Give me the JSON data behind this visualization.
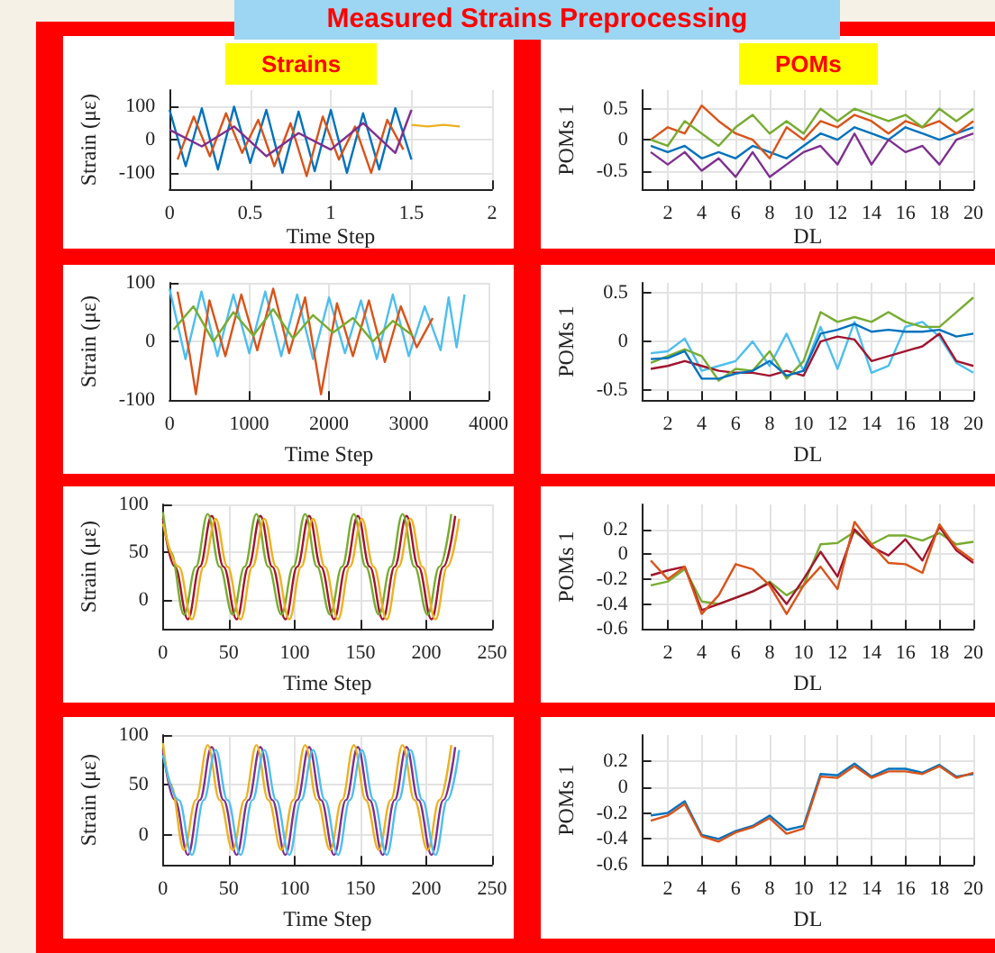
{
  "chart_data": [
    {
      "type": "line",
      "title": "Measured Strains Preprocessing",
      "subtitle": "Strains",
      "xlabel": "Time Step",
      "ylabel": "Strain (με)",
      "xlim": [
        0,
        2
      ],
      "xticks": [
        0,
        0.5,
        1,
        1.5,
        2
      ],
      "ylim": [
        -150,
        150
      ],
      "yticks": [
        -100,
        0,
        100
      ],
      "grid": true,
      "marker": "none",
      "series": [
        {
          "color": "#0072bd",
          "x": [
            0,
            0.1,
            0.2,
            0.3,
            0.4,
            0.5,
            0.6,
            0.7,
            0.8,
            0.9,
            1,
            1.1,
            1.2,
            1.3,
            1.4,
            1.5
          ],
          "values": [
            90,
            -80,
            95,
            -90,
            100,
            -70,
            90,
            -100,
            85,
            -95,
            90,
            -100,
            80,
            -90,
            95,
            -60
          ]
        },
        {
          "color": "#d95319",
          "x": [
            0.05,
            0.15,
            0.25,
            0.35,
            0.45,
            0.55,
            0.65,
            0.75,
            0.85,
            0.95,
            1.05,
            1.15,
            1.25,
            1.35,
            1.45
          ],
          "values": [
            -60,
            70,
            -50,
            80,
            -40,
            60,
            -80,
            50,
            -110,
            70,
            -60,
            40,
            -100,
            60,
            -30
          ]
        },
        {
          "color": "#7e2f8e",
          "x": [
            0,
            0.2,
            0.4,
            0.6,
            0.8,
            1,
            1.2,
            1.4,
            1.5
          ],
          "values": [
            30,
            -20,
            40,
            -50,
            20,
            -30,
            50,
            -40,
            90
          ]
        },
        {
          "color": "#edb120",
          "x": [
            1.5,
            1.6,
            1.7,
            1.8
          ],
          "values": [
            45,
            40,
            45,
            40
          ]
        }
      ]
    },
    {
      "type": "line",
      "subtitle": "POMs",
      "xlabel": "DL",
      "ylabel": "POMs 1",
      "xlim": [
        0.5,
        20
      ],
      "xticks": [
        2,
        4,
        6,
        8,
        10,
        12,
        14,
        16,
        18,
        20
      ],
      "ylim": [
        -0.8,
        0.8
      ],
      "yticks": [
        -0.5,
        0,
        0.5
      ],
      "grid": true,
      "marker": "none",
      "series": [
        {
          "color": "#0072bd",
          "x": [
            1,
            2,
            3,
            4,
            5,
            6,
            7,
            8,
            9,
            10,
            11,
            12,
            13,
            14,
            15,
            16,
            17,
            18,
            19,
            20
          ],
          "values": [
            -0.1,
            -0.2,
            -0.1,
            -0.3,
            -0.2,
            -0.3,
            -0.1,
            -0.2,
            -0.3,
            -0.1,
            0.1,
            0,
            0.2,
            0.1,
            0,
            0.2,
            0.1,
            0,
            0.1,
            0.2
          ]
        },
        {
          "color": "#d95319",
          "x": [
            1,
            2,
            3,
            4,
            5,
            6,
            7,
            8,
            9,
            10,
            11,
            12,
            13,
            14,
            15,
            16,
            17,
            18,
            19,
            20
          ],
          "values": [
            0,
            0.2,
            0.1,
            0.55,
            0.3,
            0.1,
            0,
            -0.3,
            0.2,
            0,
            0.3,
            0.2,
            0.4,
            0.3,
            0.1,
            0.3,
            0.2,
            0.3,
            0.1,
            0.3
          ]
        },
        {
          "color": "#7e2f8e",
          "x": [
            1,
            2,
            3,
            4,
            5,
            6,
            7,
            8,
            9,
            10,
            11,
            12,
            13,
            14,
            15,
            16,
            17,
            18,
            19,
            20
          ],
          "values": [
            -0.2,
            -0.4,
            -0.2,
            -0.5,
            -0.3,
            -0.6,
            -0.2,
            -0.6,
            -0.4,
            -0.2,
            -0.1,
            -0.4,
            0.1,
            -0.4,
            0,
            -0.2,
            -0.1,
            -0.4,
            0,
            0.1
          ]
        },
        {
          "color": "#77ac30",
          "x": [
            1,
            2,
            3,
            4,
            5,
            6,
            7,
            8,
            9,
            10,
            11,
            12,
            13,
            14,
            15,
            16,
            17,
            18,
            19,
            20
          ],
          "values": [
            0,
            -0.1,
            0.3,
            0.1,
            -0.1,
            0.2,
            0.4,
            0.1,
            0.3,
            0.1,
            0.5,
            0.3,
            0.5,
            0.4,
            0.3,
            0.4,
            0.2,
            0.5,
            0.3,
            0.5
          ]
        }
      ]
    },
    {
      "type": "line",
      "xlabel": "Time Step",
      "ylabel": "Strain (με)",
      "xlim": [
        0,
        4000
      ],
      "xticks": [
        0,
        1000,
        2000,
        3000,
        4000
      ],
      "ylim": [
        -100,
        100
      ],
      "yticks": [
        -100,
        0,
        100
      ],
      "grid": true,
      "marker": "none",
      "series": [
        {
          "color": "#4dbeee",
          "x": [
            0,
            200,
            400,
            600,
            800,
            1000,
            1200,
            1400,
            1600,
            1800,
            2000,
            2200,
            2400,
            2600,
            2800,
            3000,
            3200,
            3400,
            3500,
            3600,
            3700
          ],
          "values": [
            90,
            -30,
            85,
            -25,
            80,
            -20,
            85,
            -25,
            80,
            -30,
            75,
            -20,
            70,
            -30,
            80,
            -25,
            60,
            -15,
            75,
            -10,
            80
          ]
        },
        {
          "color": "#d95319",
          "x": [
            100,
            250,
            330,
            500,
            700,
            900,
            1100,
            1300,
            1500,
            1700,
            1900,
            2100,
            2300,
            2500,
            2700,
            2900,
            3100,
            3300
          ],
          "values": [
            85,
            -20,
            -90,
            70,
            -25,
            80,
            -15,
            90,
            -20,
            75,
            -90,
            65,
            -25,
            70,
            -35,
            60,
            -10,
            40
          ]
        },
        {
          "color": "#77ac30",
          "x": [
            50,
            300,
            550,
            800,
            1050,
            1300,
            1550,
            1800,
            2050,
            2300,
            2550,
            2800,
            3050
          ],
          "values": [
            20,
            60,
            0,
            50,
            10,
            55,
            5,
            45,
            15,
            40,
            0,
            35,
            10
          ]
        }
      ]
    },
    {
      "type": "line",
      "xlabel": "DL",
      "ylabel": "POMs 1",
      "xlim": [
        0.5,
        20
      ],
      "xticks": [
        2,
        4,
        6,
        8,
        10,
        12,
        14,
        16,
        18,
        20
      ],
      "ylim": [
        -0.6,
        0.6
      ],
      "yticks": [
        -0.5,
        0,
        0.5
      ],
      "grid": true,
      "marker": "none",
      "series": [
        {
          "color": "#4dbeee",
          "x": [
            1,
            2,
            3,
            4,
            5,
            6,
            7,
            8,
            9,
            10,
            11,
            12,
            13,
            14,
            15,
            16,
            17,
            18,
            19,
            20
          ],
          "values": [
            -0.12,
            -0.1,
            0.03,
            -0.3,
            -0.25,
            -0.2,
            0,
            -0.25,
            0.08,
            -0.3,
            0.15,
            -0.28,
            0.2,
            -0.32,
            -0.25,
            0.15,
            0.2,
            0.05,
            -0.22,
            -0.32
          ]
        },
        {
          "color": "#a2142f",
          "x": [
            1,
            2,
            3,
            4,
            5,
            6,
            7,
            8,
            9,
            10,
            11,
            12,
            13,
            14,
            15,
            16,
            17,
            18,
            19,
            20
          ],
          "values": [
            -0.28,
            -0.25,
            -0.2,
            -0.25,
            -0.3,
            -0.32,
            -0.32,
            -0.35,
            -0.3,
            -0.35,
            0,
            0.05,
            0.02,
            -0.2,
            -0.15,
            -0.1,
            -0.05,
            0.08,
            -0.2,
            -0.25
          ]
        },
        {
          "color": "#77ac30",
          "x": [
            1,
            2,
            3,
            4,
            5,
            6,
            7,
            8,
            9,
            10,
            11,
            12,
            13,
            14,
            15,
            16,
            17,
            18,
            19,
            20
          ],
          "values": [
            -0.22,
            -0.15,
            -0.08,
            -0.15,
            -0.4,
            -0.28,
            -0.3,
            -0.1,
            -0.38,
            -0.2,
            0.3,
            0.2,
            0.25,
            0.2,
            0.3,
            0.2,
            0.15,
            0.15,
            0.3,
            0.45
          ]
        },
        {
          "color": "#0072bd",
          "x": [
            1,
            2,
            3,
            4,
            5,
            6,
            7,
            8,
            9,
            10,
            11,
            12,
            13,
            14,
            15,
            16,
            17,
            18,
            19,
            20
          ],
          "values": [
            -0.18,
            -0.17,
            -0.1,
            -0.38,
            -0.38,
            -0.33,
            -0.3,
            -0.2,
            -0.35,
            -0.3,
            0.08,
            0.12,
            0.18,
            0.1,
            0.12,
            0.1,
            0.1,
            0.12,
            0.05,
            0.08
          ]
        }
      ]
    },
    {
      "type": "line",
      "xlabel": "Time Step",
      "ylabel": "Strain (με)",
      "xlim": [
        0,
        250
      ],
      "xticks": [
        0,
        50,
        100,
        150,
        200,
        250
      ],
      "ylim": [
        -30,
        100
      ],
      "yticks": [
        0,
        50,
        100
      ],
      "grid": true,
      "marker": "none",
      "series": [
        {
          "color": "#a2142f",
          "x": [
            0,
            9,
            19,
            28,
            37,
            46,
            56,
            65,
            74,
            83,
            93,
            102,
            111,
            120,
            130,
            139,
            148,
            157,
            167,
            176,
            185,
            194,
            204,
            213,
            222
          ],
          "values": [
            85,
            35,
            -20,
            35,
            88,
            35,
            -20,
            35,
            88,
            35,
            -20,
            35,
            88,
            35,
            -20,
            35,
            88,
            35,
            -20,
            35,
            88,
            35,
            -20,
            35,
            88
          ]
        },
        {
          "color": "#77ac30",
          "x": [
            0,
            6,
            16,
            25,
            34,
            43,
            53,
            62,
            71,
            80,
            90,
            99,
            108,
            117,
            127,
            136,
            145,
            154,
            164,
            173,
            182,
            191,
            201,
            210,
            219
          ],
          "values": [
            92,
            50,
            -15,
            35,
            90,
            35,
            -15,
            35,
            90,
            35,
            -15,
            35,
            90,
            35,
            -15,
            35,
            90,
            35,
            -15,
            35,
            90,
            35,
            -15,
            35,
            90
          ]
        },
        {
          "color": "#edb120",
          "x": [
            0,
            12,
            22,
            31,
            40,
            49,
            59,
            68,
            77,
            86,
            96,
            105,
            114,
            123,
            133,
            142,
            151,
            160,
            170,
            179,
            188,
            197,
            207,
            216,
            225
          ],
          "values": [
            80,
            35,
            -20,
            35,
            85,
            35,
            -20,
            35,
            85,
            35,
            -20,
            35,
            85,
            35,
            -20,
            35,
            85,
            35,
            -20,
            35,
            85,
            35,
            -20,
            35,
            85
          ]
        }
      ]
    },
    {
      "type": "line",
      "xlabel": "DL",
      "ylabel": "POMs 1",
      "xlim": [
        0.5,
        20
      ],
      "xticks": [
        2,
        4,
        6,
        8,
        10,
        12,
        14,
        16,
        18,
        20
      ],
      "ylim": [
        -0.6,
        0.4
      ],
      "yticks": [
        -0.6,
        -0.4,
        -0.2,
        0,
        0.2
      ],
      "grid": true,
      "marker": "none",
      "series": [
        {
          "color": "#77ac30",
          "x": [
            1,
            2,
            3,
            4,
            5,
            6,
            7,
            8,
            9,
            10,
            11,
            12,
            13,
            14,
            15,
            16,
            17,
            18,
            19,
            20
          ],
          "values": [
            -0.25,
            -0.22,
            -0.12,
            -0.38,
            -0.4,
            -0.35,
            -0.3,
            -0.22,
            -0.33,
            -0.25,
            0.08,
            0.09,
            0.18,
            0.08,
            0.15,
            0.15,
            0.11,
            0.17,
            0.08,
            0.1
          ]
        },
        {
          "color": "#a2142f",
          "x": [
            1,
            2,
            3,
            4,
            5,
            6,
            7,
            8,
            9,
            10,
            11,
            12,
            13,
            14,
            15,
            16,
            17,
            18,
            19,
            20
          ],
          "values": [
            -0.17,
            -0.13,
            -0.1,
            -0.45,
            -0.4,
            -0.35,
            -0.3,
            -0.23,
            -0.4,
            -0.2,
            0.02,
            -0.18,
            0.2,
            0.06,
            -0.01,
            0.12,
            -0.05,
            0.22,
            0.03,
            -0.07
          ]
        },
        {
          "color": "#d95319",
          "x": [
            1,
            2,
            3,
            4,
            5,
            6,
            7,
            8,
            9,
            10,
            11,
            12,
            13,
            14,
            15,
            16,
            17,
            18,
            19,
            20
          ],
          "values": [
            -0.05,
            -0.2,
            -0.1,
            -0.48,
            -0.33,
            -0.08,
            -0.12,
            -0.25,
            -0.48,
            -0.25,
            -0.1,
            -0.28,
            0.26,
            0.08,
            -0.07,
            -0.08,
            -0.15,
            0.24,
            0.05,
            -0.05
          ]
        }
      ]
    },
    {
      "type": "line",
      "xlabel": "Time Step",
      "ylabel": "Strain (με)",
      "xlim": [
        0,
        250
      ],
      "xticks": [
        0,
        50,
        100,
        150,
        200,
        250
      ],
      "ylim": [
        -30,
        100
      ],
      "yticks": [
        0,
        50,
        100
      ],
      "grid": true,
      "marker": "none",
      "series": [
        {
          "color": "#7e2f8e",
          "x": [
            0,
            9,
            19,
            28,
            37,
            46,
            56,
            65,
            74,
            83,
            93,
            102,
            111,
            120,
            130,
            139,
            148,
            157,
            167,
            176,
            185,
            194,
            204,
            213,
            222
          ],
          "values": [
            85,
            35,
            -20,
            35,
            88,
            35,
            -20,
            35,
            88,
            35,
            -20,
            35,
            88,
            35,
            -20,
            35,
            88,
            35,
            -20,
            35,
            88,
            35,
            -20,
            35,
            88
          ]
        },
        {
          "color": "#edb120",
          "x": [
            0,
            6,
            16,
            25,
            34,
            43,
            53,
            62,
            71,
            80,
            90,
            99,
            108,
            117,
            127,
            136,
            145,
            154,
            164,
            173,
            182,
            191,
            201,
            210,
            219
          ],
          "values": [
            92,
            50,
            -15,
            35,
            90,
            35,
            -15,
            35,
            90,
            35,
            -15,
            35,
            90,
            35,
            -15,
            35,
            90,
            35,
            -15,
            35,
            90,
            35,
            -15,
            35,
            90
          ]
        },
        {
          "color": "#4dbeee",
          "x": [
            0,
            12,
            22,
            31,
            40,
            49,
            59,
            68,
            77,
            86,
            96,
            105,
            114,
            123,
            133,
            142,
            151,
            160,
            170,
            179,
            188,
            197,
            207,
            216,
            225
          ],
          "values": [
            80,
            35,
            -20,
            35,
            85,
            35,
            -20,
            35,
            85,
            35,
            -20,
            35,
            85,
            35,
            -20,
            35,
            85,
            35,
            -20,
            35,
            85,
            35,
            -20,
            35,
            85
          ]
        }
      ]
    },
    {
      "type": "line",
      "xlabel": "DL",
      "ylabel": "POMs 1",
      "xlim": [
        0.5,
        20
      ],
      "xticks": [
        2,
        4,
        6,
        8,
        10,
        12,
        14,
        16,
        18,
        20
      ],
      "ylim": [
        -0.6,
        0.4
      ],
      "yticks": [
        -0.6,
        -0.4,
        -0.2,
        0,
        0.2
      ],
      "grid": true,
      "marker": "none",
      "series": [
        {
          "color": "#0072bd",
          "x": [
            1,
            2,
            3,
            4,
            5,
            6,
            7,
            8,
            9,
            10,
            11,
            12,
            13,
            14,
            15,
            16,
            17,
            18,
            19,
            20
          ],
          "values": [
            -0.22,
            -0.2,
            -0.11,
            -0.37,
            -0.4,
            -0.34,
            -0.3,
            -0.22,
            -0.33,
            -0.3,
            0.1,
            0.09,
            0.18,
            0.08,
            0.14,
            0.14,
            0.11,
            0.17,
            0.08,
            0.1
          ]
        },
        {
          "color": "#d95319",
          "x": [
            1,
            2,
            3,
            4,
            5,
            6,
            7,
            8,
            9,
            10,
            11,
            12,
            13,
            14,
            15,
            16,
            17,
            18,
            19,
            20
          ],
          "values": [
            -0.26,
            -0.22,
            -0.13,
            -0.38,
            -0.42,
            -0.35,
            -0.31,
            -0.24,
            -0.36,
            -0.32,
            0.08,
            0.07,
            0.16,
            0.07,
            0.12,
            0.12,
            0.1,
            0.16,
            0.07,
            0.11
          ]
        }
      ]
    }
  ]
}
